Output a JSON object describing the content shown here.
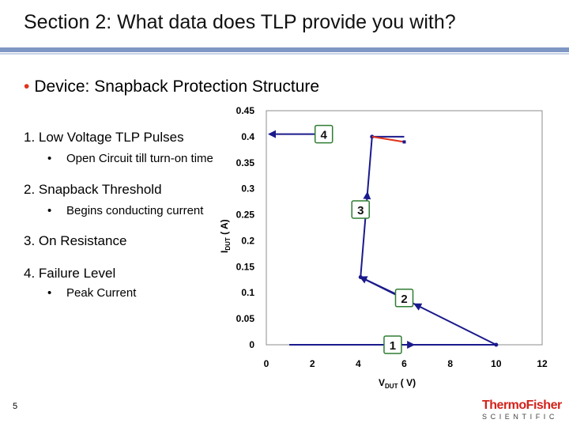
{
  "slide": {
    "title": "Section 2: What data does TLP provide you with?",
    "bullet": "Device: Snapback Protection Structure",
    "items": [
      {
        "label": "1.  Low Voltage TLP Pulses",
        "sub": "Open Circuit till turn-on time"
      },
      {
        "label": "2.  Snapback Threshold",
        "sub": "Begins conducting current"
      },
      {
        "label": "3.  On Resistance",
        "sub": ""
      },
      {
        "label": "4.  Failure Level",
        "sub": "Peak Current"
      }
    ],
    "page_number": "5",
    "logo_line1": "ThermoFisher",
    "logo_line2": "SCIENTIFIC"
  },
  "chart_data": {
    "type": "line",
    "xlabel_main": "V",
    "xlabel_sub": "DUT",
    "xlabel_unit": " ( V)",
    "ylabel_main": "I",
    "ylabel_sub": "DUT",
    "ylabel_unit": " ( A)",
    "xlim": [
      0,
      12
    ],
    "ylim": [
      0,
      0.45
    ],
    "x_ticks": [
      0,
      2,
      4,
      6,
      8,
      10,
      12
    ],
    "y_ticks": [
      0,
      0.05,
      0.1,
      0.15,
      0.2,
      0.25,
      0.3,
      0.35,
      0.4,
      0.45
    ],
    "x_tick_labels": [
      "0",
      "2",
      "4",
      "6",
      "8",
      "10",
      "12"
    ],
    "y_tick_labels": [
      "0",
      "0.05",
      "0.1",
      "0.15",
      "0.2",
      "0.25",
      "0.3",
      "0.35",
      "0.4",
      "0.45"
    ],
    "series": [
      {
        "color": "#1a1a8c",
        "points": [
          [
            1,
            0
          ],
          [
            10,
            0
          ],
          [
            4.1,
            0.13
          ],
          [
            4.6,
            0.4
          ],
          [
            6,
            0.4
          ]
        ]
      },
      {
        "color": "#e0341b",
        "points": [
          [
            4.6,
            0.4
          ],
          [
            6,
            0.39
          ]
        ]
      }
    ],
    "callouts": [
      {
        "label": "1",
        "x": 5.5,
        "y": 0.0,
        "arrow_to": null
      },
      {
        "label": "2",
        "x": 6,
        "y": 0.09,
        "arrow_to": [
          4.1,
          0.13
        ]
      },
      {
        "label": "3",
        "x": 4.1,
        "y": 0.26,
        "arrow_to": null
      },
      {
        "label": "4",
        "x": 2.5,
        "y": 0.405,
        "arrow_to": [
          0,
          0.405
        ]
      }
    ],
    "grid": false,
    "border_color": "#8c8c8c"
  }
}
